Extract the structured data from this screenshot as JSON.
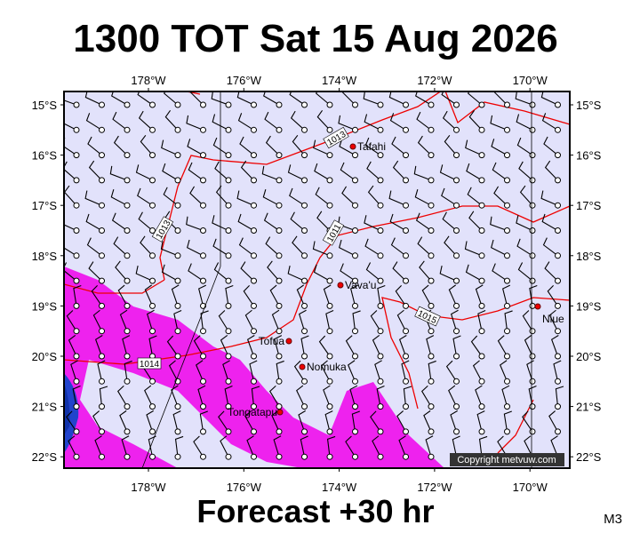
{
  "header": {
    "title": "1300 TOT Sat 15 Aug 2026"
  },
  "map": {
    "lon_labels": [
      "178°W",
      "176°W",
      "174°W",
      "172°W",
      "170°W"
    ],
    "lat_labels": [
      "15°S",
      "16°S",
      "17°S",
      "18°S",
      "19°S",
      "20°S",
      "21°S",
      "22°S"
    ],
    "places": [
      "Tafahi",
      "Vava'u",
      "Niue",
      "Tofua",
      "Nomuka",
      "Tongatapu"
    ],
    "isobar_labels": [
      "1013",
      "1013",
      "1011",
      "1015",
      "1014"
    ],
    "copyright": "Copyright metvuw.com"
  },
  "footer": {
    "caption": "Forecast +30 hr",
    "model": "M3"
  }
}
